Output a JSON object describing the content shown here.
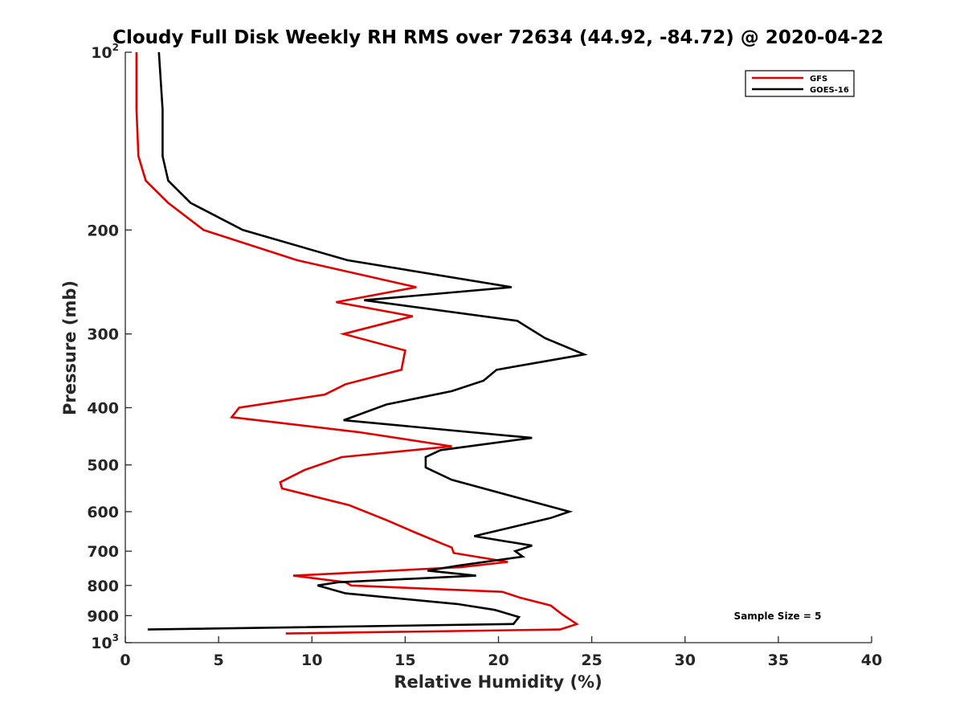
{
  "chart_data": {
    "type": "line",
    "title": "Cloudy Full Disk Weekly RH RMS over 72634 (44.92, -84.72) @ 2020-04-22",
    "xlabel": "Relative Humidity (%)",
    "ylabel": "Pressure (mb)",
    "xlim": [
      0,
      40
    ],
    "ylim": [
      100,
      1000
    ],
    "yscale": "log",
    "y_reversed": true,
    "grid": false,
    "legend_position": "top-right",
    "x_ticks": [
      0,
      5,
      10,
      15,
      20,
      25,
      30,
      35,
      40
    ],
    "x_tick_labels": [
      "0",
      "5",
      "10",
      "15",
      "20",
      "25",
      "30",
      "35",
      "40"
    ],
    "y_ticks": [
      {
        "value": 100,
        "base": "10",
        "exp": "2"
      },
      {
        "value": 200,
        "label": "200"
      },
      {
        "value": 300,
        "label": "300"
      },
      {
        "value": 400,
        "label": "400"
      },
      {
        "value": 500,
        "label": "500"
      },
      {
        "value": 600,
        "label": "600"
      },
      {
        "value": 700,
        "label": "700"
      },
      {
        "value": 800,
        "label": "800"
      },
      {
        "value": 900,
        "label": "900"
      },
      {
        "value": 1000,
        "base": "10",
        "exp": "3"
      }
    ],
    "annotation": "Sample Size = 5",
    "series": [
      {
        "name": "GFS",
        "color": "#e00000",
        "points": [
          [
            0.6,
            100
          ],
          [
            0.6,
            125
          ],
          [
            0.7,
            150
          ],
          [
            1.1,
            165
          ],
          [
            2.3,
            180
          ],
          [
            4.2,
            200
          ],
          [
            9.2,
            225
          ],
          [
            15.6,
            250
          ],
          [
            11.3,
            265
          ],
          [
            15.4,
            280
          ],
          [
            11.7,
            300
          ],
          [
            15.0,
            320
          ],
          [
            14.8,
            345
          ],
          [
            11.8,
            365
          ],
          [
            10.7,
            380
          ],
          [
            6.1,
            400
          ],
          [
            5.7,
            415
          ],
          [
            12.5,
            440
          ],
          [
            17.5,
            465
          ],
          [
            11.6,
            485
          ],
          [
            9.6,
            510
          ],
          [
            8.3,
            535
          ],
          [
            8.4,
            548
          ],
          [
            12.0,
            585
          ],
          [
            14.0,
            620
          ],
          [
            15.5,
            650
          ],
          [
            17.0,
            680
          ],
          [
            17.5,
            690
          ],
          [
            17.6,
            705
          ],
          [
            20.5,
            730
          ],
          [
            18.0,
            745
          ],
          [
            9.0,
            770
          ],
          [
            11.8,
            790
          ],
          [
            12.1,
            800
          ],
          [
            20.2,
            820
          ],
          [
            21.2,
            840
          ],
          [
            22.8,
            865
          ],
          [
            23.4,
            895
          ],
          [
            24.2,
            930
          ],
          [
            23.3,
            950
          ],
          [
            8.6,
            965
          ]
        ]
      },
      {
        "name": "GOES-16",
        "color": "#000000",
        "points": [
          [
            1.8,
            100
          ],
          [
            2.0,
            125
          ],
          [
            2.0,
            150
          ],
          [
            2.3,
            165
          ],
          [
            3.5,
            180
          ],
          [
            6.3,
            200
          ],
          [
            11.9,
            225
          ],
          [
            20.7,
            250
          ],
          [
            12.8,
            263
          ],
          [
            21.0,
            285
          ],
          [
            22.5,
            305
          ],
          [
            24.6,
            325
          ],
          [
            19.9,
            345
          ],
          [
            19.2,
            360
          ],
          [
            17.5,
            375
          ],
          [
            14.0,
            395
          ],
          [
            11.7,
            420
          ],
          [
            21.8,
            450
          ],
          [
            16.9,
            472
          ],
          [
            16.1,
            485
          ],
          [
            16.1,
            505
          ],
          [
            17.5,
            530
          ],
          [
            21.2,
            570
          ],
          [
            23.8,
            600
          ],
          [
            22.8,
            615
          ],
          [
            20.5,
            640
          ],
          [
            18.7,
            660
          ],
          [
            21.8,
            685
          ],
          [
            20.9,
            700
          ],
          [
            21.3,
            715
          ],
          [
            17.9,
            740
          ],
          [
            16.2,
            755
          ],
          [
            18.8,
            770
          ],
          [
            11.4,
            790
          ],
          [
            10.3,
            800
          ],
          [
            11.8,
            825
          ],
          [
            17.8,
            860
          ],
          [
            19.8,
            880
          ],
          [
            21.1,
            905
          ],
          [
            20.8,
            930
          ],
          [
            1.2,
            950
          ]
        ]
      }
    ]
  }
}
